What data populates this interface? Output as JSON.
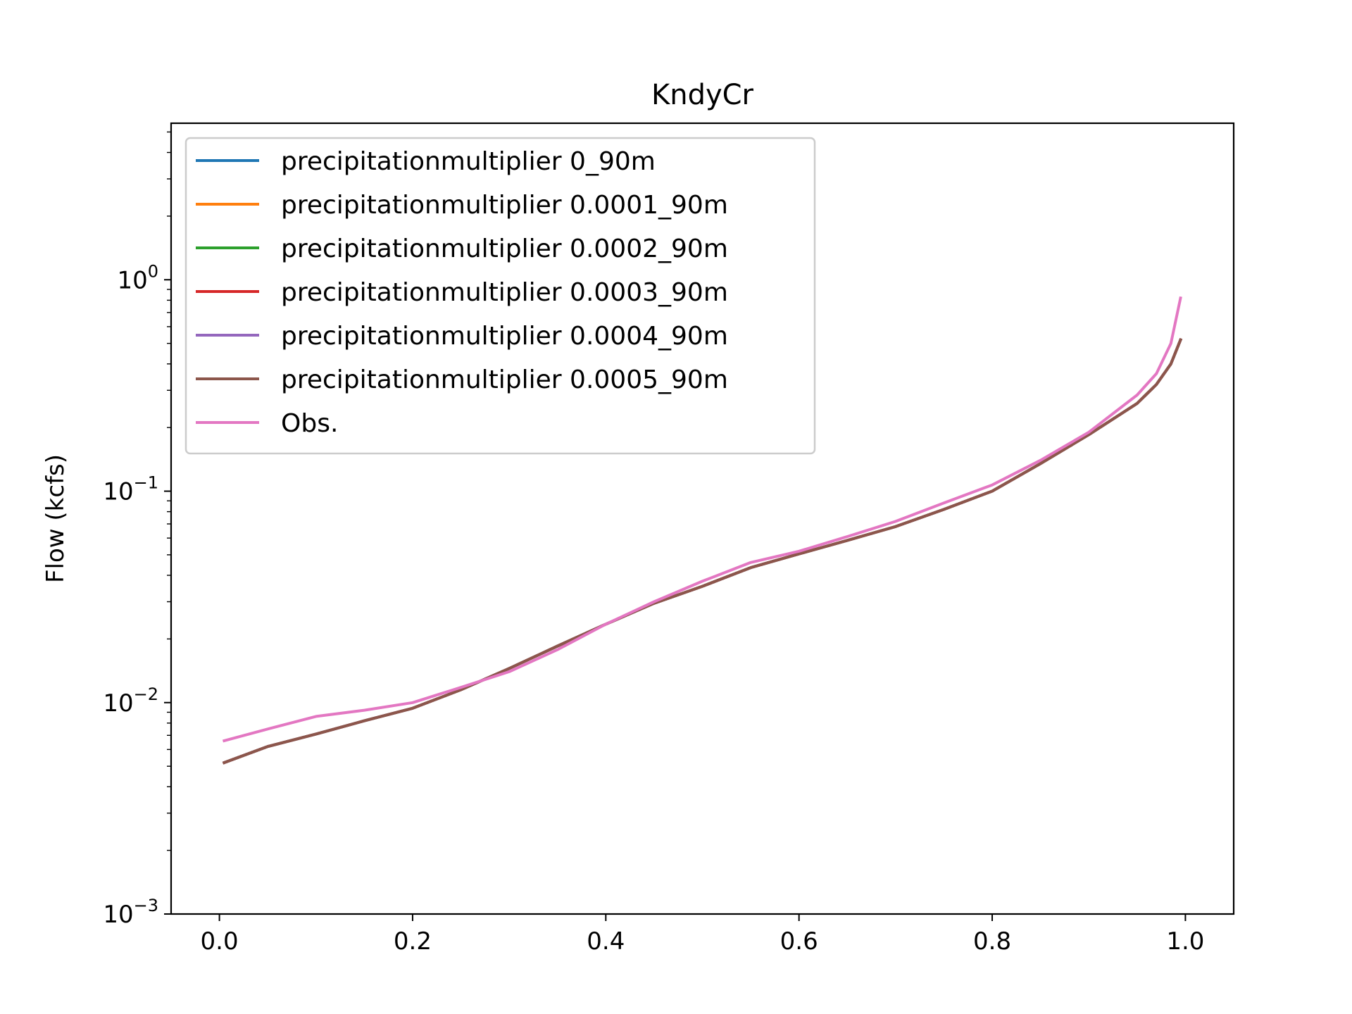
{
  "chart_data": {
    "type": "line",
    "title": "KndyCr",
    "xlabel": "",
    "ylabel": "Flow (kcfs)",
    "xlim": [
      -0.05,
      1.05
    ],
    "ylim": [
      0.001,
      5.5
    ],
    "yscale": "log",
    "grid": false,
    "legend_position": "upper-left",
    "x_ticks": [
      "0.0",
      "0.2",
      "0.4",
      "0.6",
      "0.8",
      "1.0"
    ],
    "y_ticks": [
      {
        "base": "10",
        "exp": "0"
      },
      {
        "base": "10",
        "exp": "−1"
      },
      {
        "base": "10",
        "exp": "−2"
      },
      {
        "base": "10",
        "exp": "−3"
      }
    ],
    "x": [
      0.005,
      0.05,
      0.1,
      0.15,
      0.2,
      0.25,
      0.3,
      0.35,
      0.4,
      0.45,
      0.5,
      0.55,
      0.6,
      0.65,
      0.7,
      0.75,
      0.8,
      0.85,
      0.9,
      0.95,
      0.97,
      0.985,
      0.995
    ],
    "series": [
      {
        "name": "precipitationmultiplier 0_90m",
        "color": "#1f77b4",
        "values": [
          0.0052,
          0.0062,
          0.0071,
          0.0082,
          0.0094,
          0.0115,
          0.0145,
          0.0185,
          0.0235,
          0.0295,
          0.0355,
          0.0435,
          0.0505,
          0.0585,
          0.068,
          0.082,
          0.1,
          0.135,
          0.185,
          0.26,
          0.32,
          0.4,
          0.52
        ]
      },
      {
        "name": "precipitationmultiplier 0.0001_90m",
        "color": "#ff7f0e",
        "values": [
          0.0052,
          0.0062,
          0.0071,
          0.0082,
          0.0094,
          0.0115,
          0.0145,
          0.0185,
          0.0235,
          0.0295,
          0.0355,
          0.0435,
          0.0505,
          0.0585,
          0.068,
          0.082,
          0.1,
          0.135,
          0.185,
          0.26,
          0.32,
          0.4,
          0.52
        ]
      },
      {
        "name": "precipitationmultiplier 0.0002_90m",
        "color": "#2ca02c",
        "values": [
          0.0052,
          0.0062,
          0.0071,
          0.0082,
          0.0094,
          0.0115,
          0.0145,
          0.0185,
          0.0235,
          0.0295,
          0.0355,
          0.0435,
          0.0505,
          0.0585,
          0.068,
          0.082,
          0.1,
          0.135,
          0.185,
          0.26,
          0.32,
          0.4,
          0.52
        ]
      },
      {
        "name": "precipitationmultiplier 0.0003_90m",
        "color": "#d62728",
        "values": [
          0.0052,
          0.0062,
          0.0071,
          0.0082,
          0.0094,
          0.0115,
          0.0145,
          0.0185,
          0.0235,
          0.0295,
          0.0355,
          0.0435,
          0.0505,
          0.0585,
          0.068,
          0.082,
          0.1,
          0.135,
          0.185,
          0.26,
          0.32,
          0.4,
          0.52
        ]
      },
      {
        "name": "precipitationmultiplier 0.0004_90m",
        "color": "#9467bd",
        "values": [
          0.0052,
          0.0062,
          0.0071,
          0.0082,
          0.0094,
          0.0115,
          0.0145,
          0.0185,
          0.0235,
          0.0295,
          0.0355,
          0.0435,
          0.0505,
          0.0585,
          0.068,
          0.082,
          0.1,
          0.135,
          0.185,
          0.26,
          0.32,
          0.4,
          0.52
        ]
      },
      {
        "name": "precipitationmultiplier 0.0005_90m",
        "color": "#8c564b",
        "values": [
          0.0052,
          0.0062,
          0.0071,
          0.0082,
          0.0094,
          0.0115,
          0.0145,
          0.0185,
          0.0235,
          0.0295,
          0.0355,
          0.0435,
          0.0505,
          0.0585,
          0.068,
          0.082,
          0.1,
          0.135,
          0.185,
          0.26,
          0.32,
          0.4,
          0.52
        ]
      },
      {
        "name": "Obs.",
        "color": "#e377c2",
        "values": [
          0.0066,
          0.0075,
          0.0086,
          0.0092,
          0.01,
          0.0118,
          0.014,
          0.0178,
          0.0235,
          0.03,
          0.0375,
          0.046,
          0.052,
          0.061,
          0.072,
          0.088,
          0.107,
          0.14,
          0.19,
          0.285,
          0.36,
          0.5,
          0.82
        ]
      }
    ]
  }
}
